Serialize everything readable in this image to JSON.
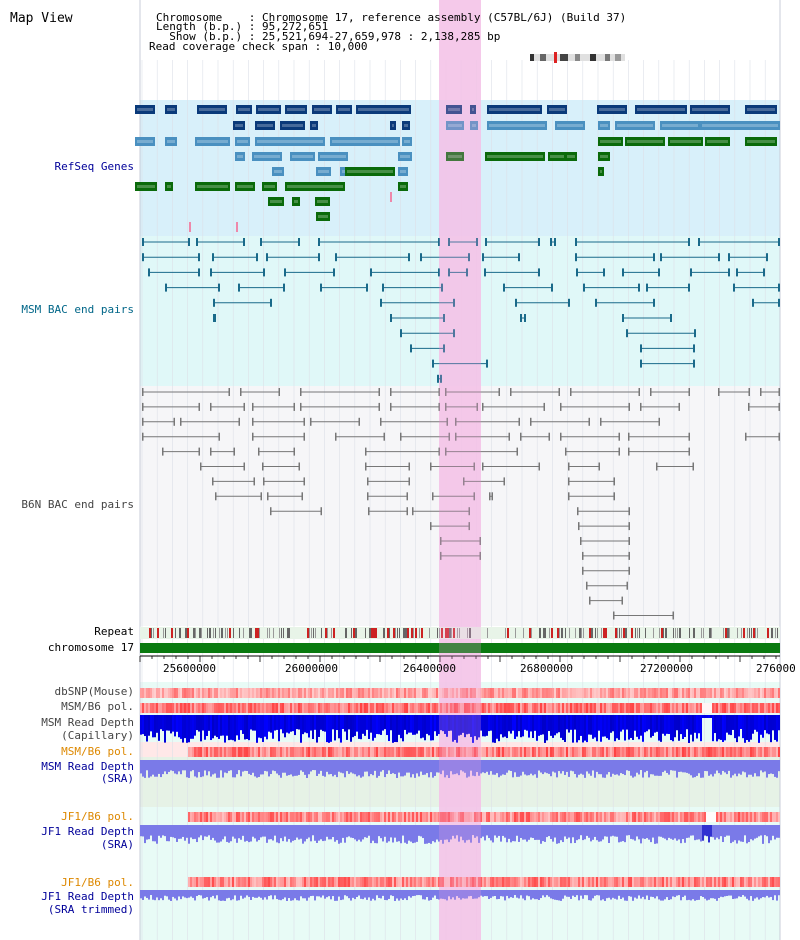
{
  "app": {
    "title": "Map View"
  },
  "header": {
    "lines": [
      "Chromosome    : Chromosome 17, reference assembly (C57BL/6J) (Build 37)",
      "Length (b.p.) : 95,272,651",
      "  Show (b.p.) : 25,521,694-27,659,978 : 2,138,285 bp",
      "Read coverage check span : 10,000"
    ]
  },
  "tracks": {
    "refseq": "RefSeq Genes",
    "msm_bac": "MSM BAC end pairs",
    "b6n_bac": "B6N BAC end pairs",
    "repeat": "Repeat",
    "chromosome": "chromosome 17",
    "dbsnp": "dbSNP(Mouse)",
    "msm_b6_pol_1": "MSM/B6 pol.",
    "msm_read_depth_cap_1": "MSM Read Depth",
    "msm_read_depth_cap_2": "(Capillary)",
    "msm_b6_pol_2": "MSM/B6 pol.",
    "msm_read_depth_sra_1": "MSM Read Depth",
    "msm_read_depth_sra_2": "(SRA)",
    "jf1_b6_pol_1": "JF1/B6 pol.",
    "jf1_read_depth_sra_1": "JF1 Read Depth",
    "jf1_read_depth_sra_2": "(SRA)",
    "jf1_b6_pol_2": "JF1/B6 pol.",
    "jf1_read_depth_trim_1": "JF1 Read Depth",
    "jf1_read_depth_trim_2": "(SRA trimmed)"
  },
  "axis": {
    "ticks": [
      "25600000",
      "26000000",
      "26400000",
      "26800000",
      "27200000",
      "276000"
    ]
  },
  "colors": {
    "navy_label": "#000099",
    "teal_label": "#006688",
    "gray_label": "#444444",
    "orange_label": "#dd8800",
    "highlight": "#f8d8f0",
    "gene_dark": "#0a3a7a",
    "gene_mid": "#4a90c0",
    "gene_green": "#0a6a0a"
  }
}
